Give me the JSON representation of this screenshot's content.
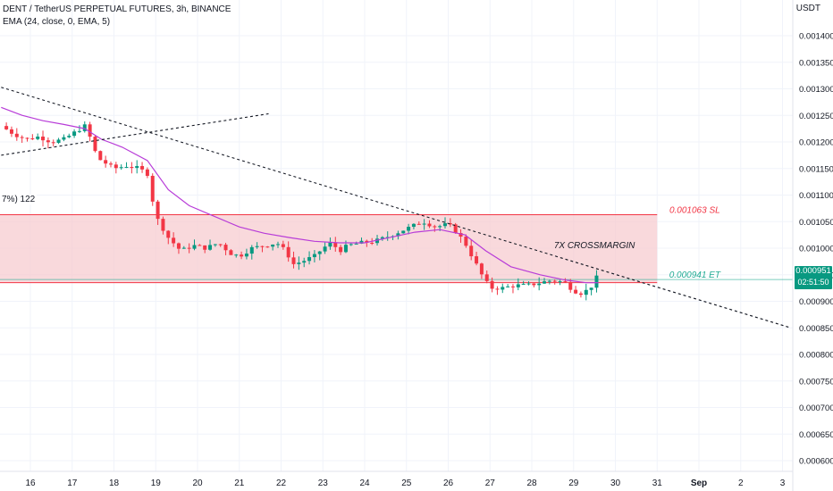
{
  "header": {
    "title": "DENT / TetherUS PERPETUAL FUTURES, 3h, BINANCE",
    "indicator": "EMA (24, close, 0, EMA, 5)",
    "currency": "USDT",
    "partial_label": "7%) 122"
  },
  "price_tag": {
    "price": "0.000951",
    "countdown": "02:51:50",
    "color": "#089981"
  },
  "chart_data": {
    "type": "candlestick",
    "interval": "3h",
    "y_axis": {
      "position": "right",
      "ylim": [
        0.000585,
        0.001445
      ],
      "ticks": [
        "0.001400",
        "0.001350",
        "0.001300",
        "0.001250",
        "0.001200",
        "0.001150",
        "0.001100",
        "0.001050",
        "0.001000",
        "0.000950",
        "0.000900",
        "0.000850",
        "0.000800",
        "0.000750",
        "0.000700",
        "0.000650",
        "0.000600"
      ]
    },
    "x_axis": {
      "ticks": [
        {
          "label": "16",
          "day": 16
        },
        {
          "label": "17",
          "day": 17
        },
        {
          "label": "18",
          "day": 18
        },
        {
          "label": "19",
          "day": 19
        },
        {
          "label": "20",
          "day": 20
        },
        {
          "label": "21",
          "day": 21
        },
        {
          "label": "22",
          "day": 22
        },
        {
          "label": "23",
          "day": 23
        },
        {
          "label": "24",
          "day": 24
        },
        {
          "label": "25",
          "day": 25
        },
        {
          "label": "26",
          "day": 26
        },
        {
          "label": "27",
          "day": 27
        },
        {
          "label": "28",
          "day": 28
        },
        {
          "label": "29",
          "day": 29
        },
        {
          "label": "30",
          "day": 30
        },
        {
          "label": "31",
          "day": 31
        },
        {
          "label": "Sep",
          "day": 32
        },
        {
          "label": "2",
          "day": 33
        },
        {
          "label": "3",
          "day": 34
        }
      ]
    },
    "grid": true,
    "colors": {
      "up": "#089981",
      "down": "#f23645",
      "ema": "#b83cd8"
    },
    "close_path": [
      [
        15.3,
        0.00123
      ],
      [
        15.6,
        0.001215
      ],
      [
        15.9,
        0.001205
      ],
      [
        16.2,
        0.00121
      ],
      [
        16.5,
        0.0012
      ],
      [
        16.8,
        0.001205
      ],
      [
        17.1,
        0.00122
      ],
      [
        17.3,
        0.00123
      ],
      [
        17.45,
        0.001205
      ],
      [
        17.6,
        0.00117
      ],
      [
        17.8,
        0.00116
      ],
      [
        18.0,
        0.00115
      ],
      [
        18.3,
        0.001155
      ],
      [
        18.6,
        0.00115
      ],
      [
        18.8,
        0.00114
      ],
      [
        19.0,
        0.00106
      ],
      [
        19.3,
        0.00102
      ],
      [
        19.6,
        0.000995
      ],
      [
        19.9,
        0.001005
      ],
      [
        20.2,
        0.001
      ],
      [
        20.5,
        0.00101
      ],
      [
        20.8,
        0.00099
      ],
      [
        21.0,
        0.000985
      ],
      [
        21.3,
        0.001
      ],
      [
        21.6,
        0.001005
      ],
      [
        21.9,
        0.00101
      ],
      [
        22.1,
        0.000995
      ],
      [
        22.3,
        0.00097
      ],
      [
        22.5,
        0.000975
      ],
      [
        22.8,
        0.000985
      ],
      [
        23.0,
        0.001
      ],
      [
        23.2,
        0.00101
      ],
      [
        23.4,
        0.000995
      ],
      [
        23.6,
        0.001005
      ],
      [
        23.9,
        0.00101
      ],
      [
        24.2,
        0.001012
      ],
      [
        24.5,
        0.00102
      ],
      [
        24.8,
        0.00103
      ],
      [
        25.1,
        0.00104
      ],
      [
        25.4,
        0.00105
      ],
      [
        25.7,
        0.00104
      ],
      [
        26.0,
        0.001045
      ],
      [
        26.2,
        0.00103
      ],
      [
        26.4,
        0.00101
      ],
      [
        26.6,
        0.00098
      ],
      [
        26.8,
        0.00095
      ],
      [
        27.0,
        0.000925
      ],
      [
        27.3,
        0.000925
      ],
      [
        27.6,
        0.00093
      ],
      [
        27.9,
        0.00093
      ],
      [
        28.2,
        0.000935
      ],
      [
        28.5,
        0.00094
      ],
      [
        28.8,
        0.000935
      ],
      [
        29.0,
        0.00092
      ],
      [
        29.2,
        0.000915
      ],
      [
        29.4,
        0.000925
      ],
      [
        29.6,
        0.000951
      ]
    ],
    "ema": [
      [
        15.3,
        0.001265
      ],
      [
        15.8,
        0.00125
      ],
      [
        16.3,
        0.00124
      ],
      [
        16.8,
        0.001233
      ],
      [
        17.3,
        0.001225
      ],
      [
        17.7,
        0.001205
      ],
      [
        18.2,
        0.00119
      ],
      [
        18.8,
        0.001165
      ],
      [
        19.3,
        0.00111
      ],
      [
        19.8,
        0.00108
      ],
      [
        20.4,
        0.00106
      ],
      [
        21.0,
        0.00104
      ],
      [
        21.6,
        0.001028
      ],
      [
        22.2,
        0.00102
      ],
      [
        22.8,
        0.001013
      ],
      [
        23.4,
        0.00101
      ],
      [
        24.0,
        0.00101
      ],
      [
        24.6,
        0.00102
      ],
      [
        25.2,
        0.00103
      ],
      [
        25.8,
        0.001035
      ],
      [
        26.4,
        0.001025
      ],
      [
        26.9,
        0.000995
      ],
      [
        27.5,
        0.000965
      ],
      [
        28.2,
        0.00095
      ],
      [
        28.8,
        0.00094
      ],
      [
        29.3,
        0.000935
      ],
      [
        29.6,
        0.000935
      ]
    ],
    "zone": {
      "top": 0.001063,
      "bottom": 0.000935,
      "x_end": 31.0,
      "fill": "#f7c9cd",
      "border": "#f23645"
    },
    "levels": [
      {
        "price": 0.001063,
        "label": "0.001063 SL",
        "color": "#f23645"
      },
      {
        "price": 0.000941,
        "label": "0.000941 ET",
        "color": "#22ab94"
      }
    ],
    "trendlines": [
      {
        "from": [
          15.3,
          0.001303
        ],
        "to": [
          34.2,
          0.00085
        ]
      },
      {
        "from": [
          15.3,
          0.001175
        ],
        "to": [
          21.7,
          0.001253
        ]
      }
    ],
    "annotations": [
      {
        "text": "7X CROSSMARGIN",
        "x": 29.5,
        "y": 0.001005
      }
    ]
  }
}
